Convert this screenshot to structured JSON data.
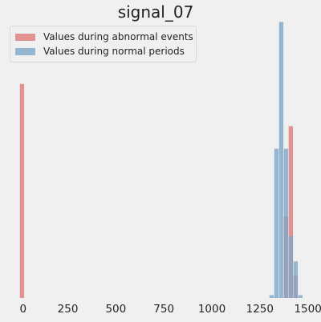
{
  "chart_data": {
    "type": "histogram",
    "title": "signal_07",
    "xlabel": "",
    "ylabel": "",
    "xlim": [
      -70,
      1535
    ],
    "ylim": [
      0,
      0.95
    ],
    "x_ticks": [
      0,
      250,
      500,
      750,
      1000,
      1250,
      1500
    ],
    "y_ticks_shown": false,
    "grid": false,
    "legend_position": "top-left",
    "bin_width": 25,
    "series": [
      {
        "name": "Values during abnormal events",
        "color": "#e07b7b",
        "bins": [
          {
            "x0": 0,
            "x1": 25,
            "value": 0.76
          },
          {
            "x0": 1375,
            "x1": 1400,
            "value": 0.29
          },
          {
            "x0": 1400,
            "x1": 1425,
            "value": 0.61
          },
          {
            "x0": 1425,
            "x1": 1450,
            "value": 0.08
          }
        ]
      },
      {
        "name": "Values during normal periods",
        "color": "#7ea7c9",
        "bins": [
          {
            "x0": 1300,
            "x1": 1325,
            "value": 0.01
          },
          {
            "x0": 1325,
            "x1": 1350,
            "value": 0.53
          },
          {
            "x0": 1350,
            "x1": 1375,
            "value": 0.98
          },
          {
            "x0": 1375,
            "x1": 1400,
            "value": 0.53
          },
          {
            "x0": 1400,
            "x1": 1425,
            "value": 0.22
          },
          {
            "x0": 1425,
            "x1": 1450,
            "value": 0.13
          },
          {
            "x0": 1450,
            "x1": 1475,
            "value": 0.01
          }
        ]
      }
    ]
  }
}
